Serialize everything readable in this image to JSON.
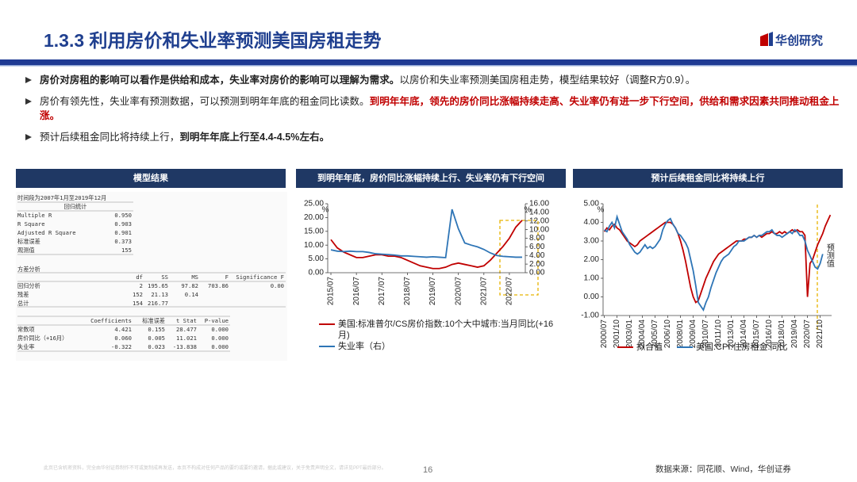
{
  "header": {
    "title": "1.3.3 利用房价和失业率预测美国房租走势",
    "logo": "华创研究"
  },
  "bullets": [
    {
      "segments": [
        {
          "text": "房价对房租的影响可以看作是供给和成本，失业率对房价的影响可以理解为需求。",
          "style": "bold"
        },
        {
          "text": "以房价和失业率预测美国房租走势，模型结果较好（调整R方0.9）。",
          "style": "normal"
        }
      ]
    },
    {
      "segments": [
        {
          "text": "房价有领先性，失业率有预测数据，可以预测到明年年底的租金同比读数。",
          "style": "normal"
        },
        {
          "text": "到明年年底，领先的房价同比涨幅持续走高、失业率仍有进一步下行空间，供给和需求因素共同推动租金上涨。",
          "style": "red"
        }
      ]
    },
    {
      "segments": [
        {
          "text": "预计后续租金同比将持续上行，",
          "style": "normal"
        },
        {
          "text": "到明年年底上行至4.4-4.5%左右。",
          "style": "bold"
        }
      ]
    }
  ],
  "table": {
    "title": "模型结果",
    "period": "时间段为2007年1月至2019年12月",
    "stats_title": "回归统计",
    "stats": [
      [
        "Multiple R",
        "0.950"
      ],
      [
        "R Square",
        "0.903"
      ],
      [
        "Adjusted R Square",
        "0.901"
      ],
      [
        "标准误差",
        "0.373"
      ],
      [
        "观测值",
        "155"
      ]
    ],
    "anova_title": "方差分析",
    "anova_header": [
      "df",
      "SS",
      "MS",
      "F",
      "Significance F"
    ],
    "anova": [
      [
        "回归分析",
        "2",
        "195.65",
        "97.82",
        "703.86",
        "0.00"
      ],
      [
        "残差",
        "152",
        "21.13",
        "0.14"
      ],
      [
        "总计",
        "154",
        "216.77"
      ]
    ],
    "coef_header": [
      "Coefficients",
      "标准误差",
      "t Stat",
      "P-value"
    ],
    "coef": [
      [
        "常数项",
        "4.421",
        "0.155",
        "28.477",
        "0.000"
      ],
      [
        "房价同比（+16月）",
        "0.060",
        "0.005",
        "11.021",
        "0.000"
      ],
      [
        "失业率",
        "-0.322",
        "0.023",
        "-13.838",
        "0.000"
      ]
    ]
  },
  "chart_data": [
    {
      "type": "line",
      "title": "到明年年底，房价同比涨幅持续上行、失业率仍有下行空间",
      "categories": [
        "2015/07",
        null,
        null,
        null,
        "2016/07",
        null,
        null,
        null,
        "2017/07",
        null,
        null,
        null,
        "2018/07",
        null,
        null,
        null,
        "2019/07",
        null,
        null,
        null,
        "2020/07",
        null,
        null,
        null,
        "2021/07",
        null,
        null,
        null,
        "2022/07",
        null,
        null
      ],
      "y_unit": "%",
      "y2_unit": "%",
      "ylim": [
        0,
        25
      ],
      "yticks": [
        {
          "value": 0,
          "label": "0.00"
        },
        {
          "value": 5,
          "label": "5.00"
        },
        {
          "value": 10,
          "label": "10.00"
        },
        {
          "value": 15,
          "label": "15.00"
        },
        {
          "value": 20,
          "label": "20.00"
        },
        {
          "value": 25,
          "label": "25.00"
        }
      ],
      "y2lim": [
        0,
        16
      ],
      "y2ticks": [
        {
          "value": 0,
          "label": "0.00"
        },
        {
          "value": 2,
          "label": "2.00"
        },
        {
          "value": 4,
          "label": "4.00"
        },
        {
          "value": 6,
          "label": "6.00"
        },
        {
          "value": 8,
          "label": "8.00"
        },
        {
          "value": 10,
          "label": "10.00"
        },
        {
          "value": 12,
          "label": "12.00"
        },
        {
          "value": 14,
          "label": "14.00"
        },
        {
          "value": 16,
          "label": "16.00"
        }
      ],
      "grid": false,
      "series": [
        {
          "name": "美国:标准普尔/CS房价指数:10个大中城市:当月同比(+16月)",
          "color": "#c00000",
          "values": [
            12.0,
            9.0,
            7.5,
            6.5,
            5.5,
            5.5,
            6.0,
            6.5,
            6.5,
            6.0,
            6.0,
            5.5,
            4.5,
            3.5,
            2.5,
            2.0,
            1.5,
            1.5,
            2.0,
            3.0,
            3.5,
            3.0,
            2.5,
            2.0,
            2.5,
            4.5,
            7.0,
            9.5,
            12.5,
            16.5,
            19.0
          ]
        },
        {
          "name": "失业率（右）",
          "color": "#2e75b6",
          "axis": "y2",
          "values": [
            5.3,
            5.0,
            4.9,
            5.0,
            4.9,
            4.9,
            4.7,
            4.4,
            4.3,
            4.2,
            4.1,
            3.9,
            3.9,
            3.8,
            3.7,
            3.6,
            3.7,
            3.6,
            3.5,
            14.7,
            10.2,
            6.9,
            6.4,
            6.0,
            5.4,
            4.6,
            4.0,
            3.8,
            3.7,
            3.6,
            3.6
          ]
        }
      ]
    },
    {
      "type": "line",
      "title": "预计后续租金同比将持续上行",
      "categories": [
        "2000/07",
        null,
        null,
        null,
        null,
        "2001/10",
        null,
        null,
        null,
        null,
        "2003/01",
        null,
        null,
        null,
        null,
        "2004/04",
        null,
        null,
        null,
        null,
        "2005/07",
        null,
        null,
        null,
        null,
        "2006/10",
        null,
        null,
        null,
        null,
        "2008/01",
        null,
        null,
        null,
        null,
        "2009/04",
        null,
        null,
        null,
        null,
        "2010/07",
        null,
        null,
        null,
        null,
        "2011/10",
        null,
        null,
        null,
        null,
        "2013/01",
        null,
        null,
        null,
        null,
        "2014/04",
        null,
        null,
        null,
        null,
        "2015/07",
        null,
        null,
        null,
        null,
        "2016/10",
        null,
        null,
        null,
        null,
        "2018/01",
        null,
        null,
        null,
        null,
        "2019/04",
        null,
        null,
        null,
        null,
        "2020/07",
        null,
        null,
        null,
        null,
        "2021/10",
        null,
        null,
        null,
        null
      ],
      "y_unit": "%",
      "annotation": "预测值",
      "ylim": [
        -1,
        5
      ],
      "yticks": [
        {
          "value": -1,
          "label": "-1.00"
        },
        {
          "value": 0,
          "label": "0.00"
        },
        {
          "value": 1,
          "label": "1.00"
        },
        {
          "value": 2,
          "label": "2.00"
        },
        {
          "value": 3,
          "label": "3.00"
        },
        {
          "value": 4,
          "label": "4.00"
        },
        {
          "value": 5,
          "label": "5.00"
        }
      ],
      "grid": false,
      "series": [
        {
          "name": "拟合值",
          "color": "#c00000",
          "values": [
            3.5,
            3.7,
            3.6,
            3.8,
            3.9,
            3.7,
            3.6,
            3.4,
            3.2,
            3.0,
            2.9,
            2.8,
            2.7,
            2.8,
            3.0,
            3.1,
            3.2,
            3.3,
            3.4,
            3.5,
            3.6,
            3.7,
            3.8,
            3.9,
            4.0,
            4.0,
            4.0,
            3.9,
            3.7,
            3.4,
            3.0,
            2.5,
            1.9,
            1.2,
            0.5,
            0.0,
            -0.3,
            -0.2,
            0.2,
            0.6,
            1.0,
            1.3,
            1.6,
            1.9,
            2.1,
            2.3,
            2.4,
            2.5,
            2.6,
            2.7,
            2.8,
            2.9,
            3.0,
            3.0,
            3.0,
            3.1,
            3.1,
            3.2,
            3.2,
            3.3,
            3.2,
            3.3,
            3.2,
            3.3,
            3.4,
            3.4,
            3.5,
            3.4,
            3.4,
            3.5,
            3.4,
            3.5,
            3.4,
            3.5,
            3.6,
            3.5,
            3.6,
            3.5,
            3.5,
            3.3,
            0.0,
            1.8,
            2.0,
            2.4,
            2.8,
            3.1,
            3.4,
            3.8,
            4.1,
            4.4
          ]
        },
        {
          "name": "美国:CPI:住房租金:同比",
          "color": "#2e75b6",
          "values": [
            3.6,
            3.5,
            3.8,
            4.0,
            3.7,
            4.3,
            3.9,
            3.5,
            3.3,
            3.1,
            2.8,
            2.6,
            2.4,
            2.3,
            2.4,
            2.6,
            2.8,
            2.6,
            2.7,
            2.6,
            2.7,
            2.9,
            3.1,
            3.6,
            3.9,
            4.1,
            4.2,
            3.9,
            3.7,
            3.4,
            3.3,
            3.1,
            2.9,
            2.6,
            2.0,
            1.4,
            0.6,
            -0.3,
            -0.5,
            -0.7,
            -0.3,
            0.0,
            0.5,
            0.9,
            1.3,
            1.6,
            1.9,
            2.1,
            2.2,
            2.3,
            2.5,
            2.7,
            2.8,
            3.0,
            3.0,
            3.0,
            3.1,
            3.2,
            3.2,
            3.3,
            3.2,
            3.3,
            3.3,
            3.4,
            3.5,
            3.5,
            3.6,
            3.4,
            3.3,
            3.3,
            3.2,
            3.3,
            3.4,
            3.5,
            3.4,
            3.6,
            3.5,
            3.3,
            3.3,
            3.0,
            2.5,
            2.2,
            1.9,
            1.6,
            1.5,
            1.8,
            2.3,
            null,
            null,
            null
          ]
        }
      ]
    }
  ],
  "footer": {
    "disclaimer": "此页已含机密资料，完全由华创证券制作不可或复制成再发送，本页不构成对任何产品的要约或要约邀请，据此或建议，关于免责声明全文，请详见PPT最后部分。",
    "page": "16",
    "source": "数据来源：同花顺、Wind，华创证券"
  }
}
